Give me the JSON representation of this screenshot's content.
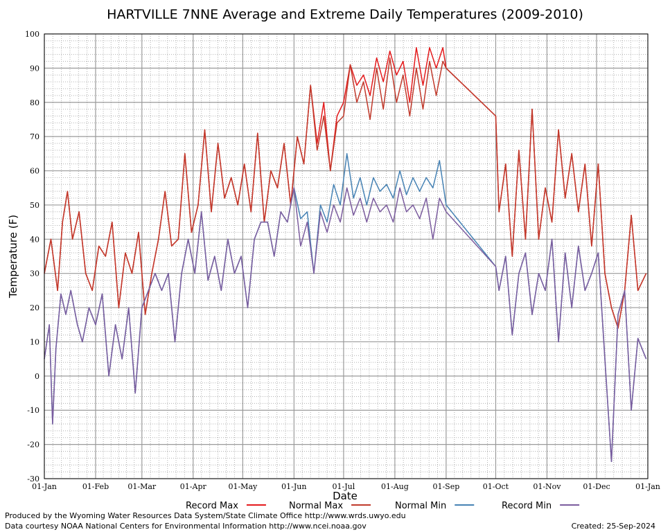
{
  "credits": {
    "produced_by": "Produced by the Wyoming Water Resources Data System/State Climate Office http://www.wrds.uwyo.edu",
    "data_courtesy": "Data courtesy NOAA National Centers for Environmental Information http://www.ncei.noaa.gov",
    "created": "Created:  25-Sep-2024"
  },
  "chart_data": {
    "type": "line",
    "title": "HARTVILLE 7NNE Average and Extreme Daily Temperatures (2009-2010)",
    "xlabel": "Date",
    "ylabel": "Temperature (F)",
    "ylim": [
      -30,
      100
    ],
    "yticks": [
      "100",
      "90",
      "80",
      "70",
      "60",
      "50",
      "40",
      "30",
      "20",
      "10",
      "0",
      "-10",
      "-20",
      "-30"
    ],
    "xlim": [
      "01-Jan",
      "01-Jan"
    ],
    "xticks": [
      "01-Jan",
      "01-Feb",
      "01-Mar",
      "01-Apr",
      "01-May",
      "01-Jun",
      "01-Jul",
      "01-Aug",
      "01-Sep",
      "01-Oct",
      "01-Nov",
      "01-Dec",
      "01-Jan"
    ],
    "grid": true,
    "legend_position": "bottom",
    "x_unit": "day of year (1 = 01-Jan)",
    "series": [
      {
        "name": "Record Max",
        "color": "#e41a1c",
        "x": [
          1,
          5,
          9,
          12,
          15,
          18,
          22,
          26,
          30,
          34,
          38,
          42,
          46,
          50,
          54,
          58,
          62,
          66,
          70,
          74,
          78,
          82,
          86,
          90,
          94,
          98,
          102,
          106,
          110,
          114,
          118,
          122,
          126,
          130,
          134,
          138,
          142,
          146,
          150,
          154,
          158,
          162,
          166,
          170,
          174,
          178,
          182,
          186,
          190,
          194,
          198,
          202,
          206,
          210,
          214,
          218,
          222,
          226,
          230,
          234,
          238,
          242,
          244,
          274,
          276,
          280,
          284,
          288,
          292,
          296,
          300,
          304,
          308,
          312,
          316,
          320,
          324,
          328,
          332,
          336,
          340,
          344,
          348,
          352,
          356,
          360,
          365
        ],
        "values": [
          30,
          40,
          25,
          45,
          54,
          40,
          48,
          30,
          25,
          38,
          35,
          45,
          20,
          36,
          30,
          42,
          18,
          30,
          40,
          54,
          38,
          40,
          65,
          42,
          50,
          72,
          48,
          68,
          52,
          58,
          50,
          62,
          48,
          71,
          45,
          60,
          55,
          68,
          50,
          70,
          62,
          85,
          68,
          80,
          60,
          76,
          80,
          91,
          85,
          88,
          82,
          93,
          86,
          95,
          88,
          92,
          80,
          96,
          85,
          96,
          90,
          96,
          90,
          76,
          48,
          62,
          35,
          66,
          40,
          78,
          40,
          55,
          45,
          72,
          52,
          65,
          48,
          62,
          38,
          62,
          30,
          20,
          14,
          25,
          47,
          25,
          30
        ]
      },
      {
        "name": "Normal Max",
        "color": "#c0392b",
        "x": [
          1,
          5,
          9,
          12,
          15,
          18,
          22,
          26,
          30,
          34,
          38,
          42,
          46,
          50,
          54,
          58,
          62,
          66,
          70,
          74,
          78,
          82,
          86,
          90,
          94,
          98,
          102,
          106,
          110,
          114,
          118,
          122,
          126,
          130,
          134,
          138,
          142,
          146,
          150,
          154,
          158,
          162,
          166,
          170,
          174,
          178,
          182,
          186,
          190,
          194,
          198,
          202,
          206,
          210,
          214,
          218,
          222,
          226,
          230,
          234,
          238,
          242,
          244,
          274,
          276,
          280,
          284,
          288,
          292,
          296,
          300,
          304,
          308,
          312,
          316,
          320,
          324,
          328,
          332,
          336,
          340,
          344,
          348,
          352,
          356,
          360,
          365
        ],
        "values": [
          30,
          40,
          25,
          45,
          54,
          40,
          48,
          30,
          25,
          38,
          35,
          45,
          20,
          36,
          30,
          42,
          18,
          30,
          40,
          54,
          38,
          40,
          65,
          42,
          50,
          72,
          48,
          68,
          52,
          58,
          50,
          62,
          48,
          71,
          45,
          60,
          55,
          68,
          50,
          70,
          62,
          85,
          66,
          76,
          60,
          74,
          76,
          91,
          80,
          86,
          75,
          90,
          78,
          93,
          80,
          88,
          76,
          90,
          78,
          92,
          82,
          92,
          90,
          76,
          48,
          62,
          35,
          66,
          40,
          78,
          40,
          55,
          45,
          72,
          52,
          65,
          48,
          62,
          38,
          62,
          30,
          20,
          14,
          25,
          47,
          25,
          30
        ]
      },
      {
        "name": "Normal Min",
        "color": "#4682b4",
        "x": [
          1,
          4,
          6,
          8,
          11,
          14,
          17,
          21,
          24,
          28,
          32,
          36,
          40,
          44,
          48,
          52,
          56,
          60,
          64,
          68,
          72,
          76,
          80,
          84,
          88,
          92,
          96,
          100,
          104,
          108,
          112,
          116,
          120,
          124,
          128,
          132,
          136,
          140,
          144,
          148,
          152,
          156,
          160,
          164,
          168,
          172,
          176,
          180,
          184,
          188,
          192,
          196,
          200,
          204,
          208,
          212,
          216,
          220,
          224,
          228,
          232,
          236,
          240,
          244,
          274,
          276,
          280,
          284,
          288,
          292,
          296,
          300,
          304,
          308,
          312,
          316,
          320,
          324,
          328,
          332,
          336,
          340,
          344,
          348,
          352,
          356,
          360,
          365
        ],
        "values": [
          5,
          15,
          -14,
          8,
          24,
          18,
          25,
          15,
          10,
          20,
          15,
          24,
          0,
          15,
          5,
          20,
          -5,
          20,
          25,
          30,
          25,
          30,
          10,
          30,
          40,
          30,
          48,
          28,
          35,
          25,
          40,
          30,
          35,
          20,
          40,
          45,
          45,
          35,
          48,
          45,
          55,
          46,
          48,
          30,
          50,
          45,
          56,
          50,
          65,
          52,
          58,
          50,
          58,
          54,
          56,
          52,
          60,
          53,
          58,
          54,
          58,
          55,
          63,
          50,
          32,
          25,
          35,
          12,
          30,
          36,
          18,
          30,
          25,
          40,
          10,
          36,
          20,
          38,
          25,
          30,
          36,
          5,
          -25,
          18,
          25,
          -10,
          11,
          5
        ]
      },
      {
        "name": "Record Min",
        "color": "#7b5c9e",
        "x": [
          1,
          4,
          6,
          8,
          11,
          14,
          17,
          21,
          24,
          28,
          32,
          36,
          40,
          44,
          48,
          52,
          56,
          60,
          64,
          68,
          72,
          76,
          80,
          84,
          88,
          92,
          96,
          100,
          104,
          108,
          112,
          116,
          120,
          124,
          128,
          132,
          136,
          140,
          144,
          148,
          152,
          156,
          160,
          164,
          168,
          172,
          176,
          180,
          184,
          188,
          192,
          196,
          200,
          204,
          208,
          212,
          216,
          220,
          224,
          228,
          232,
          236,
          240,
          244,
          274,
          276,
          280,
          284,
          288,
          292,
          296,
          300,
          304,
          308,
          312,
          316,
          320,
          324,
          328,
          332,
          336,
          340,
          344,
          348,
          352,
          356,
          360,
          365
        ],
        "values": [
          5,
          15,
          -14,
          8,
          24,
          18,
          25,
          15,
          10,
          20,
          15,
          24,
          0,
          15,
          5,
          20,
          -5,
          20,
          25,
          30,
          25,
          30,
          10,
          30,
          40,
          30,
          48,
          28,
          35,
          25,
          40,
          30,
          35,
          20,
          40,
          45,
          45,
          35,
          48,
          45,
          55,
          38,
          45,
          30,
          48,
          42,
          50,
          45,
          55,
          47,
          52,
          45,
          52,
          48,
          50,
          45,
          55,
          48,
          50,
          46,
          52,
          40,
          52,
          48,
          32,
          25,
          35,
          12,
          30,
          36,
          18,
          30,
          25,
          40,
          10,
          36,
          20,
          38,
          25,
          30,
          36,
          5,
          -25,
          18,
          25,
          -10,
          11,
          5
        ]
      }
    ]
  }
}
